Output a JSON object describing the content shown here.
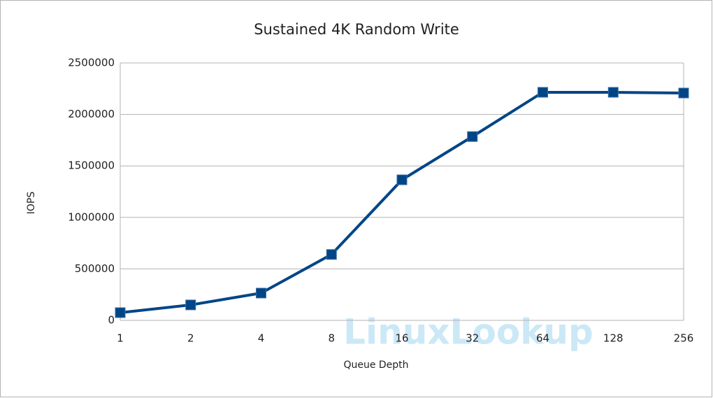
{
  "chart_data": {
    "type": "line",
    "title": "Sustained 4K Random Write",
    "x_label": "Queue Depth",
    "y_label": "IOPS",
    "categories": [
      "1",
      "2",
      "4",
      "8",
      "16",
      "32",
      "64",
      "128",
      "256"
    ],
    "series": [
      {
        "name": "IOPS",
        "color": "#004586",
        "values": [
          75000,
          150000,
          265000,
          640000,
          1365000,
          1785000,
          2215000,
          2215000,
          2208000
        ]
      }
    ],
    "ylim": [
      0,
      2500000
    ],
    "yticks": [
      0,
      500000,
      1000000,
      1500000,
      2000000,
      2500000
    ],
    "grid": true,
    "legend": false,
    "watermark": "LinuxLookup"
  }
}
